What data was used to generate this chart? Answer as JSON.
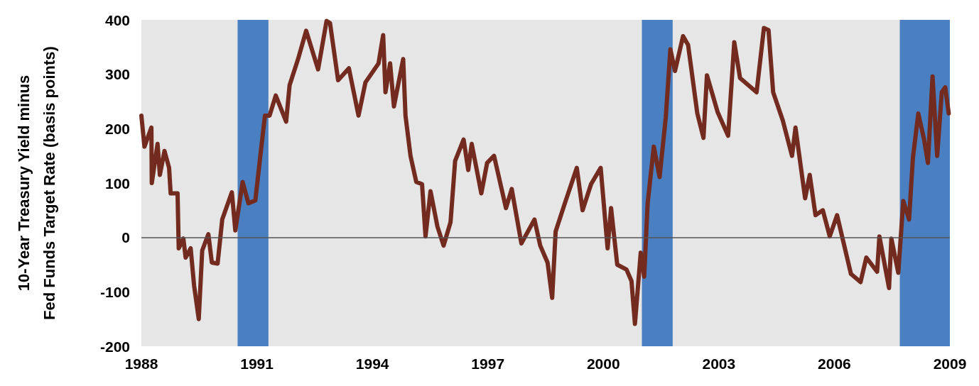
{
  "chart_data": {
    "type": "line",
    "ylabel": "10-Year Treasury Yield minus\nFed Funds Target Rate (basis points)",
    "xlim": [
      1988,
      2009
    ],
    "xticks": [
      1988,
      1991,
      1994,
      1997,
      2000,
      2003,
      2006,
      2009
    ],
    "ylim": [
      -200,
      400
    ],
    "yticks": [
      -200,
      -100,
      0,
      100,
      200,
      300,
      400
    ],
    "grid": false,
    "marker": "none",
    "line_style": "solid",
    "ref_lines": [
      {
        "axis": "y",
        "value": 0,
        "color": "#555555"
      }
    ],
    "bands": [
      {
        "axis": "x",
        "from": 1990.5,
        "to": 1991.3,
        "color": "#4a7fc1"
      },
      {
        "axis": "x",
        "from": 2001.0,
        "to": 2001.8,
        "color": "#4a7fc1"
      },
      {
        "axis": "x",
        "from": 2007.7,
        "to": 2009,
        "color": "#4a7fc1"
      }
    ],
    "series": [
      {
        "color": "#722b1e",
        "x": [
          1988.0,
          1988.08,
          1988.26,
          1988.27,
          1988.42,
          1988.48,
          1988.6,
          1988.72,
          1988.76,
          1988.94,
          1988.97,
          1989.09,
          1989.15,
          1989.28,
          1989.37,
          1989.49,
          1989.58,
          1989.74,
          1989.83,
          1989.98,
          1990.1,
          1990.35,
          1990.44,
          1990.63,
          1990.78,
          1990.96,
          1991.09,
          1991.21,
          1991.33,
          1991.49,
          1991.76,
          1991.85,
          1992.07,
          1992.28,
          1992.59,
          1992.81,
          1992.9,
          1993.11,
          1993.39,
          1993.64,
          1993.82,
          1994.16,
          1994.28,
          1994.34,
          1994.46,
          1994.56,
          1994.8,
          1994.86,
          1994.99,
          1995.14,
          1995.29,
          1995.38,
          1995.51,
          1995.69,
          1995.85,
          1996.03,
          1996.15,
          1996.37,
          1996.49,
          1996.58,
          1996.83,
          1996.98,
          1997.16,
          1997.47,
          1997.62,
          1997.87,
          1998.21,
          1998.36,
          1998.55,
          1998.67,
          1998.76,
          1999.0,
          1999.31,
          1999.46,
          1999.68,
          1999.93,
          2000.11,
          2000.2,
          2000.36,
          2000.6,
          2000.73,
          2000.82,
          2000.97,
          2001.06,
          2001.15,
          2001.31,
          2001.46,
          2001.62,
          2001.74,
          2001.86,
          2002.07,
          2002.2,
          2002.44,
          2002.6,
          2002.69,
          2002.97,
          2003.24,
          2003.4,
          2003.55,
          2003.98,
          2004.17,
          2004.29,
          2004.41,
          2004.66,
          2004.9,
          2004.99,
          2005.24,
          2005.36,
          2005.51,
          2005.7,
          2005.88,
          2006.07,
          2006.43,
          2006.68,
          2006.83,
          2007.11,
          2007.17,
          2007.42,
          2007.48,
          2007.66,
          2007.79,
          2007.94,
          2008.04,
          2008.18,
          2008.33,
          2008.43,
          2008.55,
          2008.67,
          2008.79,
          2008.88,
          2008.97
        ],
        "values": [
          224,
          167,
          202,
          100,
          172,
          115,
          159,
          128,
          81,
          81,
          -20,
          -2,
          -37,
          -20,
          -89,
          -150,
          -24,
          6,
          -46,
          -48,
          33,
          83,
          13,
          102,
          63,
          68,
          150,
          224,
          224,
          261,
          213,
          280,
          328,
          380,
          309,
          398,
          394,
          289,
          311,
          224,
          285,
          320,
          372,
          267,
          320,
          241,
          328,
          224,
          150,
          102,
          98,
          2,
          85,
          20,
          -15,
          28,
          141,
          180,
          124,
          172,
          81,
          137,
          150,
          54,
          89,
          -11,
          33,
          -15,
          -46,
          -111,
          11,
          63,
          128,
          50,
          98,
          128,
          -20,
          54,
          -50,
          -59,
          -80,
          -159,
          -28,
          -72,
          63,
          167,
          111,
          220,
          346,
          306,
          370,
          354,
          228,
          183,
          298,
          230,
          187,
          359,
          293,
          267,
          385,
          381,
          267,
          215,
          150,
          202,
          72,
          115,
          41,
          50,
          2,
          41,
          -67,
          -82,
          -37,
          -63,
          2,
          -93,
          -2,
          -65,
          67,
          33,
          146,
          228,
          180,
          137,
          296,
          150,
          267,
          276,
          228
        ]
      }
    ]
  }
}
